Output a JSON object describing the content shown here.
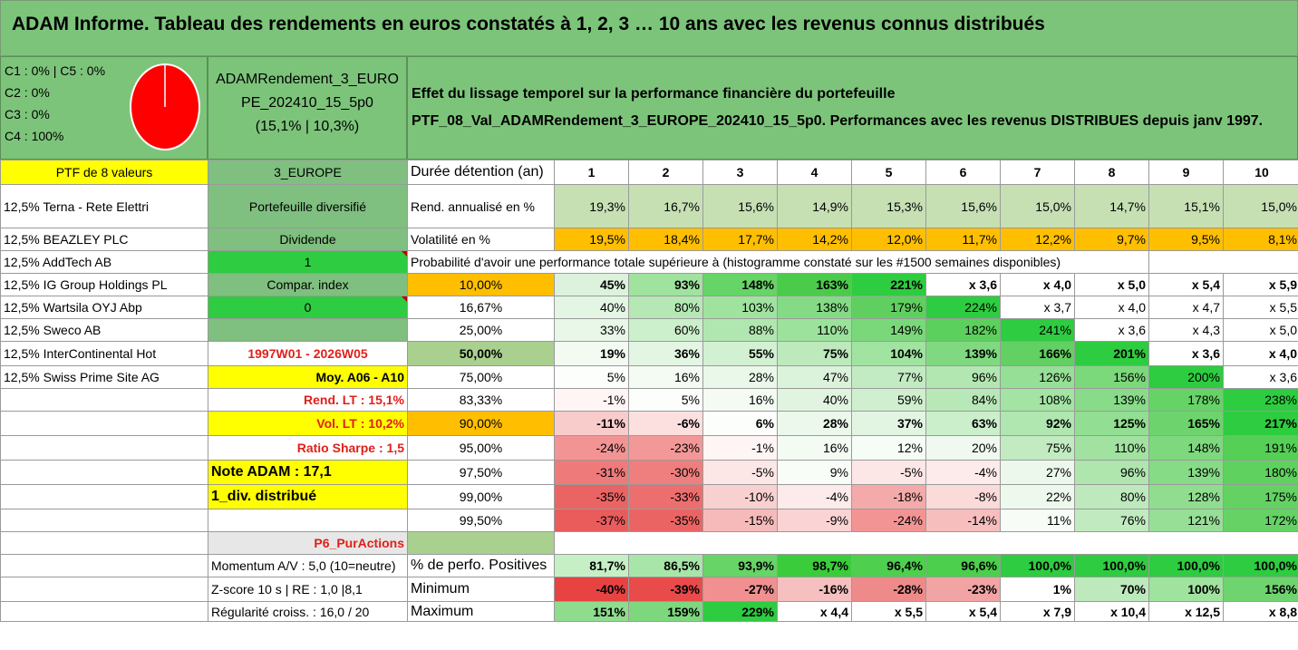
{
  "title": "ADAM Informe. Tableau des rendements en euros constatés à 1, 2, 3 … 10 ans avec les revenus connus distribués",
  "header": {
    "composition": [
      "C1 : 0% | C5 : 0%",
      "C2 : 0%",
      "C3 : 0%",
      "C4 : 100%"
    ],
    "pie_color": "#ff0000",
    "pie_share": 1.0,
    "fund_name_line1": "ADAMRendement_3_EURO",
    "fund_name_line2": "PE_202410_15_5p0",
    "fund_name_line3": "(15,1% | 10,3%)",
    "desc_line1": "Effet du lissage temporel sur la performance financière du portefeuille",
    "desc_line2": "PTF_08_Val_ADAMRendement_3_EUROPE_202410_15_5p0. Performances avec les revenus DISTRIBUES depuis janv 1997."
  },
  "colors": {
    "green_header": "#7dc47b",
    "yellow": "#ffff00",
    "orange": "#ffbf00",
    "bright_green": "#2ecc40",
    "sage": "#7fbf7f",
    "light_green": "#c6e0b4",
    "red_text": "#e0201a"
  },
  "rows": [
    [
      {
        "t": "PTF de 8 valeurs",
        "c": "ctr sm",
        "bg": "#ffff00"
      },
      {
        "t": "3_EUROPE",
        "c": "ctr sm",
        "bg": "#7fbf7f"
      },
      {
        "t": "Durée détention (an)",
        "c": "lbl big2"
      },
      {
        "t": "1",
        "c": "ctr bold"
      },
      {
        "t": "2",
        "c": "ctr bold"
      },
      {
        "t": "3",
        "c": "ctr bold"
      },
      {
        "t": "4",
        "c": "ctr bold"
      },
      {
        "t": "5",
        "c": "ctr bold"
      },
      {
        "t": "6",
        "c": "ctr bold"
      },
      {
        "t": "7",
        "c": "ctr bold"
      },
      {
        "t": "8",
        "c": "ctr bold"
      },
      {
        "t": "9",
        "c": "ctr bold"
      },
      {
        "t": "10",
        "c": "ctr bold"
      }
    ],
    [
      {
        "t": "12,5% Terna - Rete Elettri",
        "c": "lbl sm"
      },
      {
        "t": "Portefeuille diversifié",
        "c": "ctr",
        "bg": "#7fbf7f"
      },
      {
        "t": "Rend. annualisé en %",
        "c": "lbl"
      },
      {
        "t": "19,3%",
        "c": "num",
        "bg": "#c6e0b4"
      },
      {
        "t": "16,7%",
        "c": "num",
        "bg": "#c6e0b4"
      },
      {
        "t": "15,6%",
        "c": "num",
        "bg": "#c6e0b4"
      },
      {
        "t": "14,9%",
        "c": "num",
        "bg": "#c6e0b4"
      },
      {
        "t": "15,3%",
        "c": "num",
        "bg": "#c6e0b4"
      },
      {
        "t": "15,6%",
        "c": "num",
        "bg": "#c6e0b4"
      },
      {
        "t": "15,0%",
        "c": "num",
        "bg": "#c6e0b4"
      },
      {
        "t": "14,7%",
        "c": "num",
        "bg": "#c6e0b4"
      },
      {
        "t": "15,1%",
        "c": "num",
        "bg": "#c6e0b4"
      },
      {
        "t": "15,0%",
        "c": "num",
        "bg": "#c6e0b4"
      }
    ],
    [
      {
        "t": "12,5% BEAZLEY PLC",
        "c": "lbl sm"
      },
      {
        "t": "Dividende",
        "c": "ctr",
        "bg": "#7fbf7f"
      },
      {
        "t": "Volatilité en %",
        "c": "lbl"
      },
      {
        "t": "19,5%",
        "c": "num",
        "bg": "#ffbf00"
      },
      {
        "t": "18,4%",
        "c": "num",
        "bg": "#ffbf00"
      },
      {
        "t": "17,7%",
        "c": "num",
        "bg": "#ffbf00"
      },
      {
        "t": "14,2%",
        "c": "num",
        "bg": "#ffbf00"
      },
      {
        "t": "12,0%",
        "c": "num",
        "bg": "#ffbf00"
      },
      {
        "t": "11,7%",
        "c": "num",
        "bg": "#ffbf00"
      },
      {
        "t": "12,2%",
        "c": "num",
        "bg": "#ffbf00"
      },
      {
        "t": "9,7%",
        "c": "num",
        "bg": "#ffbf00"
      },
      {
        "t": "9,5%",
        "c": "num",
        "bg": "#ffbf00"
      },
      {
        "t": "8,1%",
        "c": "num",
        "bg": "#ffbf00"
      }
    ],
    [
      {
        "t": "12,5% AddTech AB",
        "c": "lbl sm"
      },
      {
        "t": "1",
        "c": "ctr flag",
        "bg": "#2ecc40"
      },
      {
        "t": "Probabilité d'avoir une performance totale supérieure à (histogramme constaté sur les #1500 semaines disponibles)",
        "c": "lbl",
        "span": 9
      },
      {
        "t": "",
        "c": ""
      },
      {
        "t": "",
        "c": ""
      }
    ],
    [
      {
        "t": "12,5% IG Group Holdings PL",
        "c": "lbl sm"
      },
      {
        "t": "Compar. index",
        "c": "ctr",
        "bg": "#7fbf7f"
      },
      {
        "t": "10,00%",
        "c": "ctr",
        "bg": "#ffbf00"
      },
      {
        "t": "45%",
        "c": "num bold",
        "bg": "#dcf2dc"
      },
      {
        "t": "93%",
        "c": "num bold",
        "bg": "#9fe39f"
      },
      {
        "t": "148%",
        "c": "num bold",
        "bg": "#66d466"
      },
      {
        "t": "163%",
        "c": "num bold",
        "bg": "#4acc4a"
      },
      {
        "t": "221%",
        "c": "num bold",
        "bg": "#2ecc40"
      },
      {
        "t": "x 3,6",
        "c": "num bold"
      },
      {
        "t": "x 4,0",
        "c": "num bold"
      },
      {
        "t": "x 5,0",
        "c": "num bold"
      },
      {
        "t": "x 5,4",
        "c": "num bold"
      },
      {
        "t": "x 5,9",
        "c": "num bold"
      }
    ],
    [
      {
        "t": "12,5% Wartsila OYJ Abp",
        "c": "lbl sm"
      },
      {
        "t": "0",
        "c": "ctr flag",
        "bg": "#2ecc40"
      },
      {
        "t": "16,67%",
        "c": "ctr sm"
      },
      {
        "t": "40%",
        "c": "num sm",
        "bg": "#e3f5e3"
      },
      {
        "t": "80%",
        "c": "num sm",
        "bg": "#b5e8b5"
      },
      {
        "t": "103%",
        "c": "num sm",
        "bg": "#9fe39f"
      },
      {
        "t": "138%",
        "c": "num sm",
        "bg": "#85db85"
      },
      {
        "t": "179%",
        "c": "num sm",
        "bg": "#5fd05f"
      },
      {
        "t": "224%",
        "c": "num sm",
        "bg": "#2ecc40"
      },
      {
        "t": "x 3,7",
        "c": "num sm"
      },
      {
        "t": "x 4,0",
        "c": "num sm"
      },
      {
        "t": "x 4,7",
        "c": "num sm"
      },
      {
        "t": "x 5,5",
        "c": "num sm"
      }
    ],
    [
      {
        "t": "12,5% Sweco AB",
        "c": "lbl sm"
      },
      {
        "t": "",
        "c": "ctr",
        "bg": "#7fbf7f"
      },
      {
        "t": "25,00%",
        "c": "ctr sm"
      },
      {
        "t": "33%",
        "c": "num sm",
        "bg": "#e8f7e8"
      },
      {
        "t": "60%",
        "c": "num sm",
        "bg": "#ccefcc"
      },
      {
        "t": "88%",
        "c": "num sm",
        "bg": "#b0e7b0"
      },
      {
        "t": "110%",
        "c": "num sm",
        "bg": "#9ce29c"
      },
      {
        "t": "149%",
        "c": "num sm",
        "bg": "#7ad87a"
      },
      {
        "t": "182%",
        "c": "num sm",
        "bg": "#5cd05c"
      },
      {
        "t": "241%",
        "c": "num sm",
        "bg": "#2ecc40"
      },
      {
        "t": "x 3,6",
        "c": "num sm"
      },
      {
        "t": "x 4,3",
        "c": "num sm"
      },
      {
        "t": "x 5,0",
        "c": "num sm"
      }
    ],
    [
      {
        "t": "12,5% InterContinental Hot",
        "c": "lbl sm"
      },
      {
        "t": "1997W01 - 2026W05",
        "c": "ctr red"
      },
      {
        "t": "50,00%",
        "c": "ctr big",
        "bg": "#a9d08e"
      },
      {
        "t": "19%",
        "c": "num big",
        "bg": "#f2faf2"
      },
      {
        "t": "36%",
        "c": "num big",
        "bg": "#e3f5e3"
      },
      {
        "t": "55%",
        "c": "num big",
        "bg": "#d2f0d2"
      },
      {
        "t": "75%",
        "c": "num big",
        "bg": "#bde9bd"
      },
      {
        "t": "104%",
        "c": "num big",
        "bg": "#a1e3a1"
      },
      {
        "t": "139%",
        "c": "num big",
        "bg": "#80d980"
      },
      {
        "t": "166%",
        "c": "num big",
        "bg": "#62d062"
      },
      {
        "t": "201%",
        "c": "num big",
        "bg": "#2ecc40"
      },
      {
        "t": "x 3,6",
        "c": "num big"
      },
      {
        "t": "x 4,0",
        "c": "num big"
      }
    ],
    [
      {
        "t": "12,5% Swiss Prime Site AG",
        "c": "lbl sm"
      },
      {
        "t": "Moy. A06 - A10",
        "c": "num bold",
        "bg": "#ffff00"
      },
      {
        "t": "75,00%",
        "c": "ctr sm"
      },
      {
        "t": "5%",
        "c": "num sm",
        "bg": "#fbfefb"
      },
      {
        "t": "16%",
        "c": "num sm",
        "bg": "#f3fbf3"
      },
      {
        "t": "28%",
        "c": "num sm",
        "bg": "#eaf8ea"
      },
      {
        "t": "47%",
        "c": "num sm",
        "bg": "#dbf2db"
      },
      {
        "t": "77%",
        "c": "num sm",
        "bg": "#c3ebc3"
      },
      {
        "t": "96%",
        "c": "num sm",
        "bg": "#b2e7b2"
      },
      {
        "t": "126%",
        "c": "num sm",
        "bg": "#96df96"
      },
      {
        "t": "156%",
        "c": "num sm",
        "bg": "#7bd87b"
      },
      {
        "t": "200%",
        "c": "num sm",
        "bg": "#2ecc40"
      },
      {
        "t": "x 3,6",
        "c": "num sm"
      }
    ],
    [
      {
        "t": "",
        "c": ""
      },
      {
        "t": "Rend. LT : 15,1%",
        "c": "num red"
      },
      {
        "t": "83,33%",
        "c": "ctr sm"
      },
      {
        "t": "-1%",
        "c": "num sm",
        "bg": "#fff5f5"
      },
      {
        "t": "5%",
        "c": "num sm",
        "bg": "#fbfefb"
      },
      {
        "t": "16%",
        "c": "num sm",
        "bg": "#f3fbf3"
      },
      {
        "t": "40%",
        "c": "num sm",
        "bg": "#e0f4e0"
      },
      {
        "t": "59%",
        "c": "num sm",
        "bg": "#cfefcf"
      },
      {
        "t": "84%",
        "c": "num sm",
        "bg": "#b8e8b8"
      },
      {
        "t": "108%",
        "c": "num sm",
        "bg": "#a3e3a3"
      },
      {
        "t": "139%",
        "c": "num sm",
        "bg": "#88db88"
      },
      {
        "t": "178%",
        "c": "num sm",
        "bg": "#66d366"
      },
      {
        "t": "238%",
        "c": "num sm",
        "bg": "#2ecc40"
      }
    ],
    [
      {
        "t": "",
        "c": ""
      },
      {
        "t": "Vol. LT : 10,2%",
        "c": "num red",
        "bg": "#ffff00"
      },
      {
        "t": "90,00%",
        "c": "ctr",
        "bg": "#ffbf00"
      },
      {
        "t": "-11%",
        "c": "num bold",
        "bg": "#f9cccc"
      },
      {
        "t": "-6%",
        "c": "num bold",
        "bg": "#fce0e0"
      },
      {
        "t": "6%",
        "c": "num bold",
        "bg": "#fbfefb"
      },
      {
        "t": "28%",
        "c": "num bold",
        "bg": "#ebf8eb"
      },
      {
        "t": "37%",
        "c": "num bold",
        "bg": "#e2f5e2"
      },
      {
        "t": "63%",
        "c": "num bold",
        "bg": "#cbeecb"
      },
      {
        "t": "92%",
        "c": "num bold",
        "bg": "#b0e6b0"
      },
      {
        "t": "125%",
        "c": "num bold",
        "bg": "#92de92"
      },
      {
        "t": "165%",
        "c": "num bold",
        "bg": "#6dd46d"
      },
      {
        "t": "217%",
        "c": "num bold",
        "bg": "#2ecc40"
      }
    ],
    [
      {
        "t": "",
        "c": ""
      },
      {
        "t": "Ratio Sharpe : 1,5",
        "c": "num red"
      },
      {
        "t": "95,00%",
        "c": "ctr sm"
      },
      {
        "t": "-24%",
        "c": "num sm",
        "bg": "#f29494"
      },
      {
        "t": "-23%",
        "c": "num sm",
        "bg": "#f39898"
      },
      {
        "t": "-1%",
        "c": "num sm",
        "bg": "#fff5f5"
      },
      {
        "t": "16%",
        "c": "num sm",
        "bg": "#f3fbf3"
      },
      {
        "t": "12%",
        "c": "num sm",
        "bg": "#f6fcf6"
      },
      {
        "t": "20%",
        "c": "num sm",
        "bg": "#eff9ef"
      },
      {
        "t": "75%",
        "c": "num sm",
        "bg": "#c2ebc2"
      },
      {
        "t": "110%",
        "c": "num sm",
        "bg": "#a1e2a1"
      },
      {
        "t": "148%",
        "c": "num sm",
        "bg": "#7ed87e"
      },
      {
        "t": "191%",
        "c": "num sm",
        "bg": "#55cf55"
      }
    ],
    [
      {
        "t": "",
        "c": ""
      },
      {
        "t": "Note ADAM : 17,1",
        "c": "lbl bold big2",
        "bg": "#ffff00"
      },
      {
        "t": "97,50%",
        "c": "ctr sm"
      },
      {
        "t": "-31%",
        "c": "num sm",
        "bg": "#ee7a7a"
      },
      {
        "t": "-30%",
        "c": "num sm",
        "bg": "#ef7e7e"
      },
      {
        "t": "-5%",
        "c": "num sm",
        "bg": "#fde6e6"
      },
      {
        "t": "9%",
        "c": "num sm",
        "bg": "#f8fdf8"
      },
      {
        "t": "-5%",
        "c": "num sm",
        "bg": "#fde6e6"
      },
      {
        "t": "-4%",
        "c": "num sm",
        "bg": "#fdeaea"
      },
      {
        "t": "27%",
        "c": "num sm",
        "bg": "#ebf8eb"
      },
      {
        "t": "96%",
        "c": "num sm",
        "bg": "#aee6ae"
      },
      {
        "t": "139%",
        "c": "num sm",
        "bg": "#86db86"
      },
      {
        "t": "180%",
        "c": "num sm",
        "bg": "#5fd15f"
      }
    ],
    [
      {
        "t": "",
        "c": ""
      },
      {
        "t": "1_div. distribué",
        "c": "lbl bold big2",
        "bg": "#ffff00"
      },
      {
        "t": "99,00%",
        "c": "ctr sm"
      },
      {
        "t": "-35%",
        "c": "num sm",
        "bg": "#eb6464"
      },
      {
        "t": "-33%",
        "c": "num sm",
        "bg": "#ed6e6e"
      },
      {
        "t": "-10%",
        "c": "num sm",
        "bg": "#f9d0d0"
      },
      {
        "t": "-4%",
        "c": "num sm",
        "bg": "#fdeaea"
      },
      {
        "t": "-18%",
        "c": "num sm",
        "bg": "#f4aaaa"
      },
      {
        "t": "-8%",
        "c": "num sm",
        "bg": "#fbdada"
      },
      {
        "t": "22%",
        "c": "num sm",
        "bg": "#eef9ee"
      },
      {
        "t": "80%",
        "c": "num sm",
        "bg": "#bde9bd"
      },
      {
        "t": "128%",
        "c": "num sm",
        "bg": "#90dd90"
      },
      {
        "t": "175%",
        "c": "num sm",
        "bg": "#63d263"
      }
    ],
    [
      {
        "t": "",
        "c": ""
      },
      {
        "t": "",
        "c": ""
      },
      {
        "t": "99,50%",
        "c": "ctr sm"
      },
      {
        "t": "-37%",
        "c": "num sm",
        "bg": "#ea5c5c"
      },
      {
        "t": "-35%",
        "c": "num sm",
        "bg": "#eb6464"
      },
      {
        "t": "-15%",
        "c": "num sm",
        "bg": "#f6baba"
      },
      {
        "t": "-9%",
        "c": "num sm",
        "bg": "#fad4d4"
      },
      {
        "t": "-24%",
        "c": "num sm",
        "bg": "#f29494"
      },
      {
        "t": "-14%",
        "c": "num sm",
        "bg": "#f7bebe"
      },
      {
        "t": "11%",
        "c": "num sm",
        "bg": "#f7fcf7"
      },
      {
        "t": "76%",
        "c": "num sm",
        "bg": "#c1eac1"
      },
      {
        "t": "121%",
        "c": "num sm",
        "bg": "#97df97"
      },
      {
        "t": "172%",
        "c": "num sm",
        "bg": "#66d266"
      }
    ],
    [
      {
        "t": "",
        "c": ""
      },
      {
        "t": "P6_PurActions",
        "c": "num red",
        "bg": "#e7e7e7"
      },
      {
        "t": "",
        "c": "",
        "bg": "#a9d08e"
      },
      {
        "t": "",
        "c": "blank",
        "span": 10
      }
    ],
    [
      {
        "t": "",
        "c": ""
      },
      {
        "t": "Momentum A/V : 5,0 (10=neutre)",
        "c": "lbl sm"
      },
      {
        "t": "% de perfo. Positives",
        "c": "lbl big2"
      },
      {
        "t": "81,7%",
        "c": "num bold",
        "bg": "#c6efc6"
      },
      {
        "t": "86,5%",
        "c": "num bold",
        "bg": "#a8e5a8"
      },
      {
        "t": "93,9%",
        "c": "num bold",
        "bg": "#66d466"
      },
      {
        "t": "98,7%",
        "c": "num bold",
        "bg": "#3acc3a"
      },
      {
        "t": "96,4%",
        "c": "num bold",
        "bg": "#4ecf4e"
      },
      {
        "t": "96,6%",
        "c": "num bold",
        "bg": "#4ccf4c"
      },
      {
        "t": "100,0%",
        "c": "num bold",
        "bg": "#2ecc40"
      },
      {
        "t": "100,0%",
        "c": "num bold",
        "bg": "#2ecc40"
      },
      {
        "t": "100,0%",
        "c": "num bold",
        "bg": "#2ecc40"
      },
      {
        "t": "100,0%",
        "c": "num bold",
        "bg": "#2ecc40"
      }
    ],
    [
      {
        "t": "",
        "c": ""
      },
      {
        "t": "Z-score 10 s | RE : 1,0 |8,1",
        "c": "lbl sm"
      },
      {
        "t": "Minimum",
        "c": "lbl big2"
      },
      {
        "t": "-40%",
        "c": "num bold",
        "bg": "#e84343"
      },
      {
        "t": "-39%",
        "c": "num bold",
        "bg": "#e94a4a"
      },
      {
        "t": "-27%",
        "c": "num bold",
        "bg": "#f09090"
      },
      {
        "t": "-16%",
        "c": "num bold",
        "bg": "#f6c0c0"
      },
      {
        "t": "-28%",
        "c": "num bold",
        "bg": "#ef8a8a"
      },
      {
        "t": "-23%",
        "c": "num bold",
        "bg": "#f2a4a4"
      },
      {
        "t": "1%",
        "c": "num bold"
      },
      {
        "t": "70%",
        "c": "num bold",
        "bg": "#bde9bd"
      },
      {
        "t": "100%",
        "c": "num bold",
        "bg": "#9fe39f"
      },
      {
        "t": "156%",
        "c": "num bold",
        "bg": "#6fd46f"
      }
    ],
    [
      {
        "t": "",
        "c": ""
      },
      {
        "t": "Régularité croiss. : 16,0 / 20",
        "c": "lbl sm"
      },
      {
        "t": "Maximum",
        "c": "lbl big2"
      },
      {
        "t": "151%",
        "c": "num bold",
        "bg": "#8fdc8f"
      },
      {
        "t": "159%",
        "c": "num bold",
        "bg": "#7dd87d"
      },
      {
        "t": "229%",
        "c": "num bold",
        "bg": "#2ecc40"
      },
      {
        "t": "x 4,4",
        "c": "num bold"
      },
      {
        "t": "x 5,5",
        "c": "num bold"
      },
      {
        "t": "x 5,4",
        "c": "num bold"
      },
      {
        "t": "x 7,9",
        "c": "num bold"
      },
      {
        "t": "x 10,4",
        "c": "num bold"
      },
      {
        "t": "x 12,5",
        "c": "num bold"
      },
      {
        "t": "x 8,8",
        "c": "num bold"
      }
    ]
  ]
}
